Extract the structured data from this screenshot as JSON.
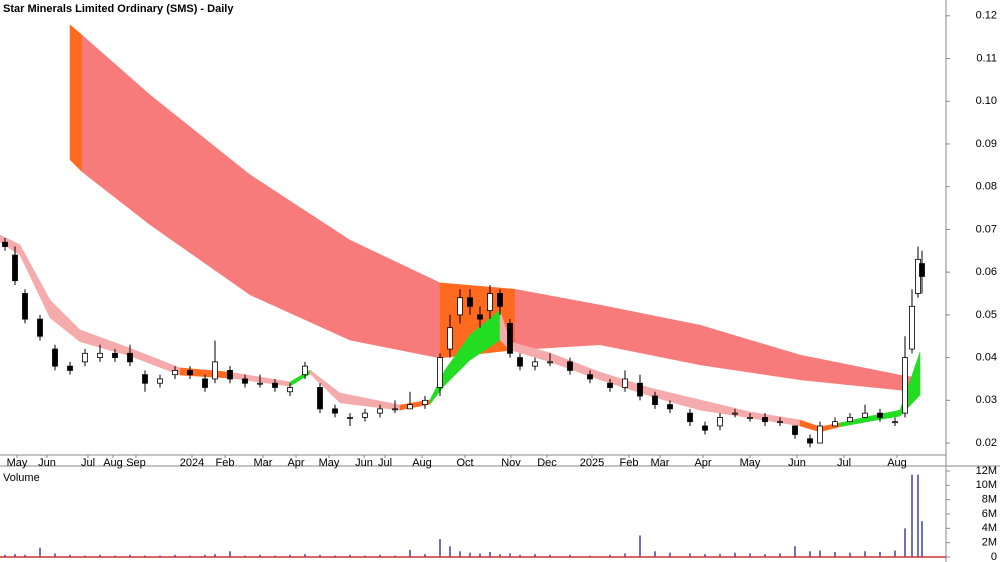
{
  "chart_data": {
    "type": "candlestick",
    "title": "Star Minerals Limited Ordinary (SMS) - Daily",
    "xlim": [
      0,
      472.5
    ],
    "xticks": [
      {
        "value": 8.5,
        "label": "May"
      },
      {
        "value": 23.5,
        "label": "Jun"
      },
      {
        "value": 44,
        "label": "Jul"
      },
      {
        "value": 56.5,
        "label": "Aug"
      },
      {
        "value": 68,
        "label": "Sep"
      },
      {
        "value": 96,
        "label": "2024"
      },
      {
        "value": 112.5,
        "label": "Feb"
      },
      {
        "value": 131.5,
        "label": "Mar"
      },
      {
        "value": 148,
        "label": "Apr"
      },
      {
        "value": 164.5,
        "label": "May"
      },
      {
        "value": 182,
        "label": "Jun"
      },
      {
        "value": 192.5,
        "label": "Jul"
      },
      {
        "value": 211,
        "label": "Aug"
      },
      {
        "value": 232.5,
        "label": "Oct"
      },
      {
        "value": 255.5,
        "label": "Nov"
      },
      {
        "value": 273.5,
        "label": "Dec"
      },
      {
        "value": 296,
        "label": "2025"
      },
      {
        "value": 314.5,
        "label": "Feb"
      },
      {
        "value": 330,
        "label": "Mar"
      },
      {
        "value": 351.5,
        "label": "Apr"
      },
      {
        "value": 375,
        "label": "May"
      },
      {
        "value": 398.5,
        "label": "Jun"
      },
      {
        "value": 422,
        "label": "Jul"
      },
      {
        "value": 448.5,
        "label": "Aug"
      }
    ],
    "ylim": [
      0.0172,
      0.1237
    ],
    "yticks": [
      0.02,
      0.03,
      0.04,
      0.05,
      0.06,
      0.07,
      0.08,
      0.09,
      {
        "value": 0.1,
        "label": "0.10"
      },
      0.11,
      0.12
    ],
    "x": [
      2.5,
      7.5,
      12.5,
      20,
      27.5,
      35,
      42.5,
      50,
      57.5,
      65,
      72.5,
      80,
      87.5,
      95,
      102.5,
      107.5,
      115,
      122.5,
      130,
      137.5,
      145,
      152.5,
      160,
      167.5,
      175,
      182.5,
      190,
      197.5,
      205,
      212.5,
      220,
      225,
      230,
      235,
      240,
      245,
      250,
      255,
      260,
      267.5,
      275,
      285,
      295,
      305,
      312.5,
      320,
      327.5,
      335,
      345,
      352.5,
      360,
      367.5,
      375,
      382.5,
      390,
      397.5,
      405,
      410,
      417.5,
      425,
      432.5,
      440,
      447.5,
      452.5,
      456,
      459,
      461
    ],
    "open": [
      0.067,
      0.064,
      0.055,
      0.049,
      0.042,
      0.038,
      0.039,
      0.04,
      0.041,
      0.041,
      0.036,
      0.034,
      0.036,
      0.037,
      0.035,
      0.035,
      0.037,
      0.035,
      0.034,
      0.034,
      0.032,
      0.036,
      0.033,
      0.028,
      0.026,
      0.026,
      0.027,
      0.028,
      0.028,
      0.029,
      0.033,
      0.042,
      0.05,
      0.054,
      0.05,
      0.051,
      0.055,
      0.048,
      0.04,
      0.038,
      0.039,
      0.039,
      0.036,
      0.034,
      0.033,
      0.034,
      0.031,
      0.029,
      0.027,
      0.024,
      0.024,
      0.027,
      0.026,
      0.026,
      0.025,
      0.024,
      0.021,
      0.02,
      0.024,
      0.025,
      0.026,
      0.027,
      0.025,
      0.027,
      0.042,
      0.055,
      0.062
    ],
    "high": [
      0.068,
      0.066,
      0.056,
      0.05,
      0.043,
      0.039,
      0.042,
      0.043,
      0.042,
      0.043,
      0.037,
      0.036,
      0.038,
      0.038,
      0.036,
      0.044,
      0.038,
      0.036,
      0.036,
      0.035,
      0.034,
      0.039,
      0.034,
      0.029,
      0.027,
      0.028,
      0.029,
      0.03,
      0.032,
      0.031,
      0.041,
      0.05,
      0.056,
      0.056,
      0.052,
      0.057,
      0.056,
      0.049,
      0.041,
      0.04,
      0.041,
      0.04,
      0.037,
      0.035,
      0.037,
      0.036,
      0.032,
      0.03,
      0.028,
      0.025,
      0.027,
      0.028,
      0.027,
      0.027,
      0.026,
      0.024,
      0.022,
      0.025,
      0.026,
      0.027,
      0.029,
      0.028,
      0.026,
      0.045,
      0.056,
      0.066,
      0.065
    ],
    "low": [
      0.065,
      0.057,
      0.048,
      0.044,
      0.037,
      0.036,
      0.038,
      0.039,
      0.039,
      0.038,
      0.032,
      0.033,
      0.035,
      0.035,
      0.032,
      0.034,
      0.034,
      0.033,
      0.033,
      0.032,
      0.031,
      0.035,
      0.027,
      0.026,
      0.024,
      0.025,
      0.026,
      0.027,
      0.028,
      0.028,
      0.031,
      0.04,
      0.048,
      0.05,
      0.047,
      0.049,
      0.05,
      0.04,
      0.037,
      0.037,
      0.038,
      0.036,
      0.034,
      0.032,
      0.032,
      0.03,
      0.028,
      0.027,
      0.024,
      0.022,
      0.023,
      0.026,
      0.025,
      0.024,
      0.024,
      0.021,
      0.019,
      0.02,
      0.024,
      0.025,
      0.026,
      0.025,
      0.024,
      0.026,
      0.041,
      0.054,
      0.055
    ],
    "close": [
      0.066,
      0.058,
      0.049,
      0.045,
      0.038,
      0.037,
      0.041,
      0.041,
      0.04,
      0.039,
      0.034,
      0.035,
      0.037,
      0.036,
      0.033,
      0.039,
      0.035,
      0.034,
      0.034,
      0.033,
      0.033,
      0.038,
      0.028,
      0.027,
      0.026,
      0.027,
      0.028,
      0.028,
      0.029,
      0.03,
      0.04,
      0.047,
      0.054,
      0.052,
      0.049,
      0.055,
      0.052,
      0.041,
      0.038,
      0.039,
      0.039,
      0.037,
      0.035,
      0.033,
      0.035,
      0.031,
      0.029,
      0.028,
      0.025,
      0.023,
      0.026,
      0.027,
      0.026,
      0.025,
      0.025,
      0.022,
      0.02,
      0.024,
      0.025,
      0.026,
      0.027,
      0.026,
      0.025,
      0.04,
      0.052,
      0.063,
      0.059
    ],
    "bands": [
      {
        "x": [
          35,
          41,
          75,
          125,
          175,
          220,
          257.5,
          300,
          350,
          400,
          450,
          460
        ],
        "upper": [
          0.1179,
          0.1155,
          0.1015,
          0.0828,
          0.0675,
          0.0575,
          0.056,
          0.0523,
          0.0476,
          0.0406,
          0.0359,
          0.0352
        ],
        "lower": [
          0.0863,
          0.0835,
          0.0711,
          0.0547,
          0.0441,
          0.0399,
          0.0418,
          0.043,
          0.0383,
          0.0348,
          0.0324,
          0.0319
        ],
        "colors": [
          "#ff6a1f",
          "#f77b7b",
          "#f77b7b",
          "#f77b7b",
          "#f77b7b",
          "#ff6a1f",
          "#f77b7b",
          "#f77b7b",
          "#f77b7b",
          "#f77b7b",
          "#f77b7b"
        ]
      },
      {
        "x": [
          0,
          10,
          25,
          40,
          65,
          90,
          115,
          145,
          155,
          170,
          200,
          215,
          222.5,
          235,
          250,
          255,
          275,
          300,
          325,
          350,
          375,
          400,
          410,
          420,
          435,
          450,
          460
        ],
        "upper": [
          0.0687,
          0.0664,
          0.0535,
          0.0465,
          0.0422,
          0.0376,
          0.0366,
          0.0343,
          0.0371,
          0.0317,
          0.0289,
          0.0301,
          0.0371,
          0.0453,
          0.0511,
          0.0437,
          0.0411,
          0.0366,
          0.0329,
          0.0301,
          0.0273,
          0.0254,
          0.0238,
          0.0247,
          0.0263,
          0.0277,
          0.0413
        ],
        "lower": [
          0.067,
          0.064,
          0.0493,
          0.0437,
          0.0404,
          0.0359,
          0.0352,
          0.0333,
          0.0362,
          0.0294,
          0.0277,
          0.0291,
          0.0336,
          0.0394,
          0.0441,
          0.0418,
          0.039,
          0.0348,
          0.031,
          0.0277,
          0.0259,
          0.024,
          0.0226,
          0.0238,
          0.0251,
          0.0263,
          0.0312
        ],
        "colors": [
          "#f5abab",
          "#f5abab",
          "#f5abab",
          "#f5abab",
          "#f5abab",
          "#ff6a1f",
          "#f5abab",
          "#22dd22",
          "#f5abab",
          "#f5abab",
          "#ff6a1f",
          "#22dd22",
          "#22dd22",
          "#22dd22",
          "#f5abab",
          "#f5abab",
          "#f5abab",
          "#f5abab",
          "#f5abab",
          "#f5abab",
          "#f5abab",
          "#ff6a1f",
          "#ff6a1f",
          "#22dd22",
          "#22dd22",
          "#22dd22"
        ]
      }
    ],
    "volume_title": "Volume",
    "volume_color": "#7070c0",
    "volume_ylim": [
      0,
      12000000
    ],
    "volume_yticks": [
      0,
      {
        "value": 2000000,
        "label": "2M"
      },
      {
        "value": 4000000,
        "label": "4M"
      },
      {
        "value": 6000000,
        "label": "6M"
      },
      {
        "value": 8000000,
        "label": "8M"
      },
      {
        "value": 10000000,
        "label": "10M"
      },
      {
        "value": 12000000,
        "label": "12M"
      }
    ],
    "volume": [
      300000,
      400000,
      300000,
      1300000,
      500000,
      300000,
      200000,
      300000,
      200000,
      300000,
      200000,
      200000,
      300000,
      200000,
      300000,
      400000,
      800000,
      200000,
      300000,
      200000,
      300000,
      400000,
      300000,
      200000,
      300000,
      200000,
      300000,
      200000,
      1000000,
      400000,
      2500000,
      1500000,
      800000,
      600000,
      500000,
      700000,
      400000,
      500000,
      300000,
      400000,
      300000,
      300000,
      200000,
      300000,
      500000,
      3000000,
      800000,
      600000,
      500000,
      400000,
      400000,
      600000,
      500000,
      400000,
      500000,
      1500000,
      800000,
      900000,
      700000,
      600000,
      800000,
      700000,
      900000,
      4000000,
      11500000,
      11500000,
      5000000
    ]
  }
}
